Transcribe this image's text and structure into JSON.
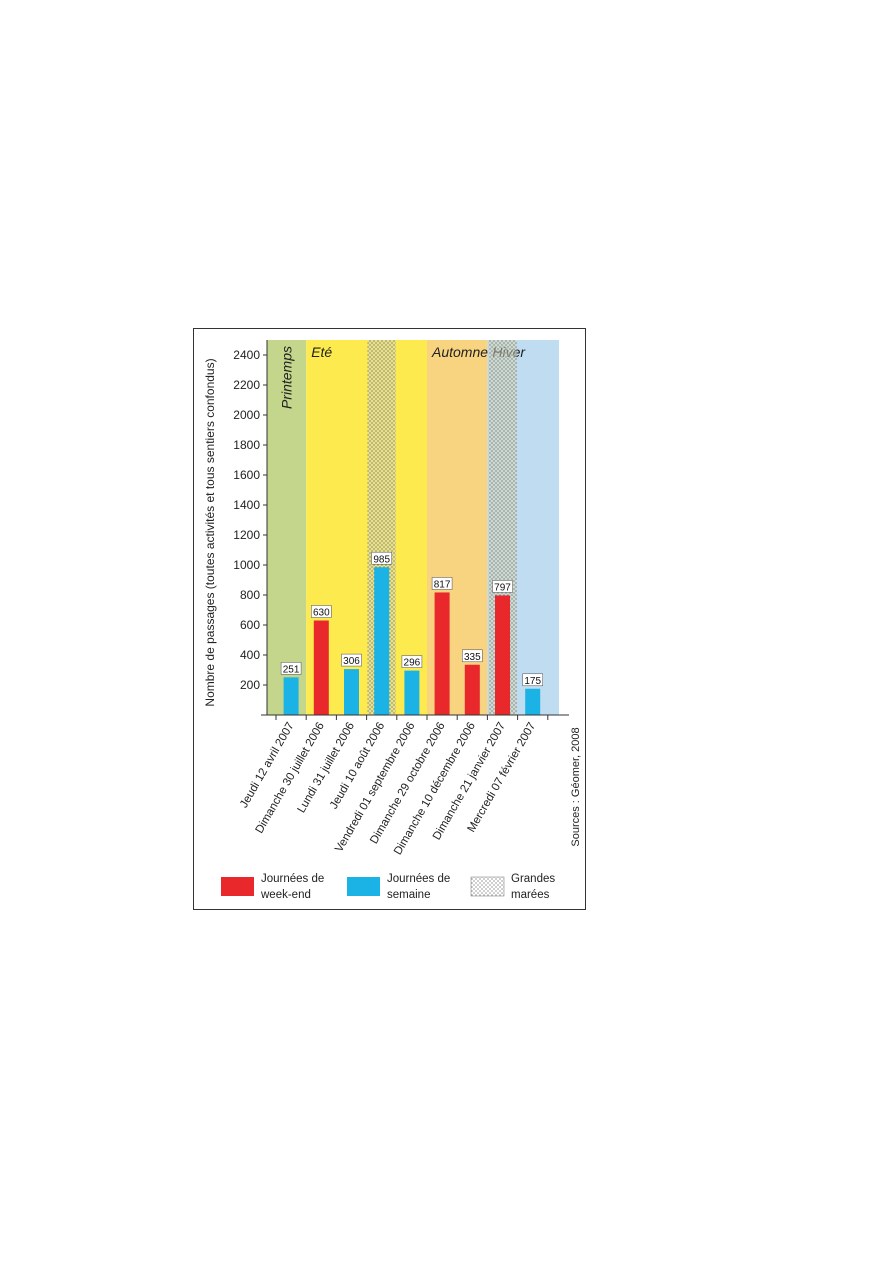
{
  "chart_data": {
    "type": "bar",
    "ylabel": "Nombre de passages (toutes activités et tous sentiers confondus)",
    "xlabel": "",
    "ylim": [
      0,
      2500
    ],
    "yticks": [
      200,
      400,
      600,
      800,
      1000,
      1200,
      1400,
      1600,
      1800,
      2000,
      2200,
      2400
    ],
    "grid": false,
    "categories": [
      "Jeudi 12 avril 2007",
      "Dimanche 30 juillet 2006",
      "Lundi 31 juillet 2006",
      "Jeudi 10 août 2006",
      "Vendredi 01 septembre 2006",
      "Dimanche 29 octobre 2006",
      "Dimanche 10 décembre 2006",
      "Dimanche 21 janvier 2007",
      "Mercredi 07 février 2007"
    ],
    "values": [
      251,
      630,
      306,
      985,
      296,
      817,
      335,
      797,
      175
    ],
    "day_type": [
      "semaine",
      "week-end",
      "semaine",
      "semaine",
      "semaine",
      "week-end",
      "week-end",
      "week-end",
      "semaine"
    ],
    "grandes_marees": [
      false,
      false,
      false,
      true,
      false,
      false,
      false,
      true,
      false
    ],
    "seasons": [
      {
        "name": "Printemps",
        "start": 0,
        "end": 0,
        "color": "#c3d68c",
        "vertical": true
      },
      {
        "name": "Eté",
        "start": 1,
        "end": 4,
        "color": "#fdea4e",
        "vertical": false
      },
      {
        "name": "Automne",
        "start": 5,
        "end": 6,
        "color": "#f8d380",
        "vertical": false
      },
      {
        "name": "Hiver",
        "start": 7,
        "end": 8,
        "color": "#bfdcf0",
        "vertical": false
      }
    ],
    "colors": {
      "week-end": "#e8282a",
      "semaine": "#1bb3e6",
      "marees_band": "#d8d8b8"
    },
    "legend": [
      {
        "key": "week-end",
        "label_lines": [
          "Journées de",
          "week-end"
        ]
      },
      {
        "key": "semaine",
        "label_lines": [
          "Journées de",
          "semaine"
        ]
      },
      {
        "key": "marees",
        "label_lines": [
          "Grandes",
          "marées"
        ]
      }
    ],
    "legend_position": "bottom",
    "source": "Sources : Géomer, 2008"
  }
}
